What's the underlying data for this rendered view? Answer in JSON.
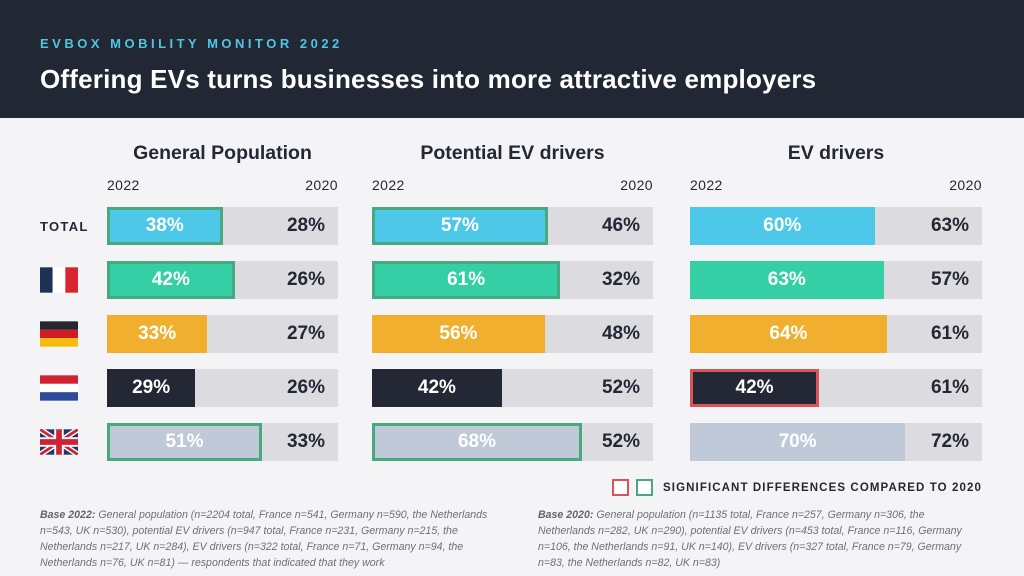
{
  "header": {
    "eyebrow": "EVBOX MOBILITY MONITOR 2022",
    "title": "Offering EVs turns businesses into more attractive employers"
  },
  "chart_data": {
    "type": "bar",
    "variant": "horizontal-paired-comparison",
    "title": "Offering EVs turns businesses into more attractive employers",
    "year_labels": {
      "current": "2022",
      "previous": "2020"
    },
    "rows": [
      {
        "label": "TOTAL",
        "flag": null,
        "color": "#4dc8e8"
      },
      {
        "label": "France",
        "flag": "france",
        "color": "#35cfa6"
      },
      {
        "label": "Germany",
        "flag": "germany",
        "color": "#f0af2f"
      },
      {
        "label": "Netherlands",
        "flag": "netherlands",
        "color": "#232834"
      },
      {
        "label": "United Kingdom",
        "flag": "uk",
        "color": "#bfc9d8"
      }
    ],
    "groups": [
      {
        "label": "General Population",
        "bar_scale": 76,
        "values_2022": [
          38,
          42,
          33,
          29,
          51
        ],
        "values_2020": [
          28,
          26,
          27,
          26,
          33
        ],
        "significance": [
          "green",
          "green",
          null,
          null,
          "green"
        ]
      },
      {
        "label": "Potential EV drivers",
        "bar_scale": 91,
        "values_2022": [
          57,
          61,
          56,
          42,
          68
        ],
        "values_2020": [
          46,
          32,
          48,
          52,
          52
        ],
        "significance": [
          "green",
          "green",
          null,
          null,
          "green"
        ]
      },
      {
        "label": "EV drivers",
        "bar_scale": 95,
        "values_2022": [
          60,
          63,
          64,
          42,
          70
        ],
        "values_2020": [
          63,
          57,
          61,
          61,
          72
        ],
        "significance": [
          null,
          null,
          null,
          "red",
          null
        ]
      }
    ],
    "legend": {
      "label": "SIGNIFICANT DIFFERENCES COMPARED TO 2020",
      "increase_color": "#49a97e",
      "decrease_color": "#d8545a"
    },
    "colors": {
      "previous_segment": "#dcdce0",
      "value_text_on_bar": "#ffffff",
      "previous_value_text": "#232834"
    }
  },
  "footnotes": {
    "base_2022": {
      "label": "Base 2022:",
      "text": "General population (n=2204 total, France n=541, Germany n=590, the Netherlands n=543, UK n=530), potential EV drivers (n=947 total, France n=231, Germany n=215, the Netherlands n=217, UK n=284), EV drivers (n=322 total, France n=71, Germany n=94, the Netherlands n=76, UK n=81) — respondents that indicated that they work"
    },
    "base_2020": {
      "label": "Base 2020:",
      "text": "General population (n=1135 total, France n=257, Germany n=306, the Netherlands n=282, UK n=290), potential EV drivers (n=453 total, France n=116, Germany n=106, the Netherlands n=91, UK n=140), EV drivers (n=327 total, France n=79, Germany n=83, the Netherlands n=82, UK n=83)"
    }
  }
}
